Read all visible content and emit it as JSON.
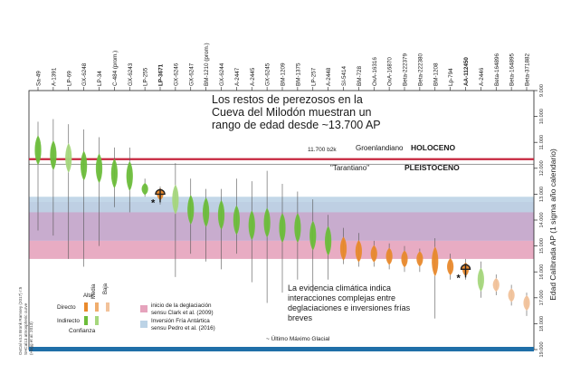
{
  "chart_data": {
    "type": "dated-distributions",
    "title": "Los restos de perezosos en la Cueva del Milodón muestran un rango de edad desde ~13.700 AP",
    "title_lines": [
      "Los restos de perezosos en la",
      "Cueva del Milodón muestran un",
      "rango de edad desde ~13.700 AP"
    ],
    "ylabel": "Edad Calibrada AP (1 sigma año calendario)",
    "ylim": [
      9000,
      19000
    ],
    "y_ticks": [
      "9.000",
      "10.000",
      "11.000",
      "12.000",
      "13.000",
      "14.000",
      "15.000",
      "16.000",
      "17.000",
      "18.000",
      "19.000"
    ],
    "y_tick_values": [
      9000,
      10000,
      11000,
      12000,
      13000,
      14000,
      15000,
      16000,
      17000,
      18000,
      19000
    ],
    "samples": [
      {
        "label": "Sa-49",
        "median": 11300,
        "min": 10200,
        "max": 14400,
        "confidence": "alta",
        "dating": "indirecto"
      },
      {
        "label": "A-1391",
        "median": 11500,
        "min": 10100,
        "max": 14600,
        "confidence": "alta",
        "dating": "indirecto"
      },
      {
        "label": "LP-69",
        "median": 11600,
        "min": 10300,
        "max": 15500,
        "confidence": "media",
        "dating": "indirecto"
      },
      {
        "label": "GX-6248",
        "median": 11900,
        "min": 10500,
        "max": 15800,
        "confidence": "alta",
        "dating": "indirecto"
      },
      {
        "label": "LP-34",
        "median": 12000,
        "min": 10800,
        "max": 15000,
        "confidence": "alta",
        "dating": "indirecto"
      },
      {
        "label": "C-484 (prom.)",
        "median": 12200,
        "min": 11200,
        "max": 13500,
        "confidence": "alta",
        "dating": "indirecto"
      },
      {
        "label": "GX-6243",
        "median": 12300,
        "min": 11200,
        "max": 13700,
        "confidence": "alta",
        "dating": "indirecto"
      },
      {
        "label": "LP-255",
        "median": 12800,
        "min": 12400,
        "max": 13100,
        "confidence": "alta",
        "dating": "indirecto"
      },
      {
        "label": "LP-3671",
        "median": 13000,
        "min": 12700,
        "max": 13400,
        "confidence": "alta",
        "dating": "directo",
        "bold": true,
        "marker": "*"
      },
      {
        "label": "GX-6246",
        "median": 13200,
        "min": 11800,
        "max": 16200,
        "confidence": "media",
        "dating": "indirecto"
      },
      {
        "label": "GX-6247",
        "median": 13600,
        "min": 12400,
        "max": 15300,
        "confidence": "alta",
        "dating": "indirecto"
      },
      {
        "label": "BM-1210 (prom.)",
        "median": 13700,
        "min": 12800,
        "max": 15600,
        "confidence": "alta",
        "dating": "indirecto"
      },
      {
        "label": "GX-6244",
        "median": 13800,
        "min": 12800,
        "max": 15900,
        "confidence": "alta",
        "dating": "indirecto"
      },
      {
        "label": "A-2447",
        "median": 14000,
        "min": 12400,
        "max": 15300,
        "confidence": "alta",
        "dating": "indirecto"
      },
      {
        "label": "A-2445",
        "median": 14200,
        "min": 12500,
        "max": 16400,
        "confidence": "alta",
        "dating": "indirecto"
      },
      {
        "label": "GX-6245",
        "median": 14100,
        "min": 12100,
        "max": 17200,
        "confidence": "alta",
        "dating": "indirecto"
      },
      {
        "label": "BM-1209",
        "median": 14300,
        "min": 12600,
        "max": 16800,
        "confidence": "alta",
        "dating": "indirecto"
      },
      {
        "label": "BM-1375",
        "median": 14300,
        "min": 12900,
        "max": 16300,
        "confidence": "alta",
        "dating": "indirecto"
      },
      {
        "label": "LP-257",
        "median": 14600,
        "min": 13200,
        "max": 16800,
        "confidence": "alta",
        "dating": "indirecto"
      },
      {
        "label": "A-2448",
        "median": 14800,
        "min": 13800,
        "max": 16300,
        "confidence": "alta",
        "dating": "indirecto"
      },
      {
        "label": "SI-5414",
        "median": 15100,
        "min": 14300,
        "max": 15700,
        "confidence": "alta",
        "dating": "directo"
      },
      {
        "label": "BM-728",
        "median": 15200,
        "min": 14500,
        "max": 15800,
        "confidence": "alta",
        "dating": "directo"
      },
      {
        "label": "OxA-16316",
        "median": 15300,
        "min": 14800,
        "max": 15800,
        "confidence": "alta",
        "dating": "directo"
      },
      {
        "label": "OxA-16870",
        "median": 15400,
        "min": 14900,
        "max": 15900,
        "confidence": "alta",
        "dating": "directo"
      },
      {
        "label": "Beta-222379",
        "median": 15500,
        "min": 15000,
        "max": 16000,
        "confidence": "alta",
        "dating": "directo"
      },
      {
        "label": "Beta-222380",
        "median": 15500,
        "min": 15100,
        "max": 16000,
        "confidence": "alta",
        "dating": "directo"
      },
      {
        "label": "BM-1208",
        "median": 15600,
        "min": 14700,
        "max": 17800,
        "confidence": "alta",
        "dating": "directo"
      },
      {
        "label": "Lp-794",
        "median": 15800,
        "min": 15300,
        "max": 16300,
        "confidence": "alta",
        "dating": "directo"
      },
      {
        "label": "AA-112450",
        "median": 15900,
        "min": 15500,
        "max": 16300,
        "confidence": "alta",
        "dating": "directo",
        "bold": true,
        "marker": "*"
      },
      {
        "label": "A-2446",
        "median": 16300,
        "min": 15600,
        "max": 17000,
        "confidence": "media",
        "dating": "indirecto"
      },
      {
        "label": "Beta-164896",
        "median": 16500,
        "min": 16100,
        "max": 16900,
        "confidence": "baja",
        "dating": "directo"
      },
      {
        "label": "Beta-164895",
        "median": 16900,
        "min": 16500,
        "max": 17300,
        "confidence": "baja",
        "dating": "directo"
      },
      {
        "label": "Beta-371882",
        "median": 17200,
        "min": 16800,
        "max": 17700,
        "confidence": "baja",
        "dating": "directo"
      }
    ],
    "bands": [
      {
        "kind": "pink",
        "from": 14800,
        "to": 15500
      },
      {
        "kind": "purple",
        "from": 13300,
        "to": 14800
      },
      {
        "kind": "blue",
        "from": 13100,
        "to": 13700
      }
    ],
    "lines": [
      {
        "kind": "holoceno",
        "value": 11700,
        "color": "#c6263e"
      },
      {
        "kind": "glacial",
        "value": 19000,
        "color": "#1f6fa8"
      }
    ],
    "annotations": {
      "boundary_age": "11.700 b2k",
      "groenlandiano": "Groenlandiano",
      "holoceno": "HOLOCENO",
      "tarantiano": "\"Tarantiano\"",
      "pleistoceno": "PLEISTOCENO",
      "glacial": "~ Último Máximo Glacial",
      "climate_lines": [
        "La evidencia climática indica",
        "interacciones complejas entre",
        "deglaciaciones e inversiones frías",
        "breves"
      ]
    },
    "legend": {
      "cols": [
        "Alta",
        "Media",
        "Baja"
      ],
      "rows": [
        "Directo",
        "Indirecto"
      ],
      "footer": "Confianza",
      "bands": [
        {
          "color": "#e6a3bc",
          "lines": [
            "inicio de la deglaciación",
            "sensu Clark et al. (2009)"
          ]
        },
        {
          "color": "#bcd3e6",
          "lines": [
            "Inversión Fría Antártica",
            "sensu Pedro et al. (2016)"
          ]
        }
      ]
    },
    "side_note": [
      "OxCal v4.3 Bronk Ramsey (2017) r:5",
      "SHCal13 atmospheric curve",
      "(Hogg et al. 2013)"
    ],
    "colors": {
      "directo": "#e98a2d",
      "indirecto": "#6cbd3a",
      "baja": "#f2c29a",
      "media_indirecto": "#a6d77d"
    }
  }
}
